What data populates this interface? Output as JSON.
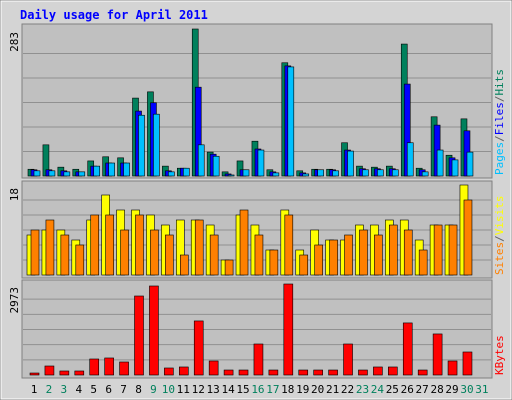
{
  "title": "Daily usage for April 2011",
  "chart_data": [
    {
      "type": "bar",
      "legend_separator": "/",
      "ylim": [
        0,
        283
      ],
      "yticks": [
        283
      ],
      "series": [
        {
          "name": "Hits",
          "color": "#00805c",
          "values": [
            13,
            60,
            17,
            13,
            29,
            37,
            35,
            150,
            162,
            19,
            15,
            283,
            46,
            8,
            29,
            67,
            12,
            218,
            10,
            13,
            13,
            64,
            19,
            17,
            19,
            254,
            15,
            114,
            40,
            110,
            null
          ]
        },
        {
          "name": "Files",
          "color": "#0000ff",
          "values": [
            12,
            12,
            10,
            8,
            19,
            25,
            25,
            125,
            141,
            10,
            15,
            171,
            42,
            4,
            12,
            52,
            8,
            212,
            6,
            12,
            12,
            50,
            14,
            14,
            14,
            177,
            12,
            98,
            35,
            87,
            null
          ]
        },
        {
          "name": "Pages",
          "color": "#00c0ff",
          "values": [
            10,
            10,
            8,
            8,
            19,
            25,
            25,
            117,
            119,
            8,
            15,
            60,
            38,
            2,
            12,
            50,
            6,
            210,
            4,
            12,
            10,
            48,
            12,
            12,
            12,
            64,
            8,
            50,
            31,
            46,
            null
          ]
        }
      ]
    },
    {
      "type": "bar",
      "legend_separator": "/",
      "ylim": [
        0,
        18
      ],
      "yticks": [
        18
      ],
      "series": [
        {
          "name": "Visits",
          "color": "#ffff00",
          "values": [
            8,
            9,
            9,
            7,
            11,
            16,
            13,
            13,
            12,
            10,
            11,
            11,
            10,
            3,
            12,
            10,
            5,
            13,
            5,
            9,
            7,
            7,
            10,
            10,
            11,
            11,
            7,
            10,
            10,
            18,
            null
          ]
        },
        {
          "name": "Sites",
          "color": "#ff8000",
          "values": [
            9,
            11,
            8,
            6,
            12,
            12,
            9,
            12,
            9,
            8,
            4,
            11,
            8,
            3,
            13,
            8,
            5,
            12,
            4,
            6,
            7,
            8,
            9,
            8,
            10,
            9,
            5,
            10,
            10,
            15,
            null
          ]
        }
      ]
    },
    {
      "type": "bar",
      "ylim": [
        0,
        2973
      ],
      "yticks": [
        2973
      ],
      "categories": [
        "1",
        "2",
        "3",
        "4",
        "5",
        "6",
        "7",
        "8",
        "9",
        "10",
        "11",
        "12",
        "13",
        "14",
        "15",
        "16",
        "17",
        "18",
        "19",
        "20",
        "21",
        "22",
        "23",
        "24",
        "25",
        "26",
        "27",
        "28",
        "29",
        "30",
        "31"
      ],
      "category_colors": [
        "#000000",
        "#00805c",
        "#00805c",
        "#000000",
        "#000000",
        "#000000",
        "#000000",
        "#000000",
        "#00805c",
        "#00805c",
        "#000000",
        "#000000",
        "#000000",
        "#000000",
        "#000000",
        "#00805c",
        "#00805c",
        "#000000",
        "#000000",
        "#000000",
        "#000000",
        "#000000",
        "#00805c",
        "#00805c",
        "#000000",
        "#000000",
        "#000000",
        "#000000",
        "#000000",
        "#00805c",
        "#00805c"
      ],
      "series": [
        {
          "name": "KBytes",
          "color": "#ff0000",
          "values": [
            65,
            294,
            131,
            131,
            523,
            556,
            425,
            2581,
            2908,
            229,
            262,
            1766,
            458,
            163,
            163,
            1013,
            163,
            2973,
            163,
            163,
            163,
            1013,
            163,
            262,
            262,
            1701,
            163,
            1341,
            458,
            752,
            null
          ]
        }
      ]
    }
  ]
}
